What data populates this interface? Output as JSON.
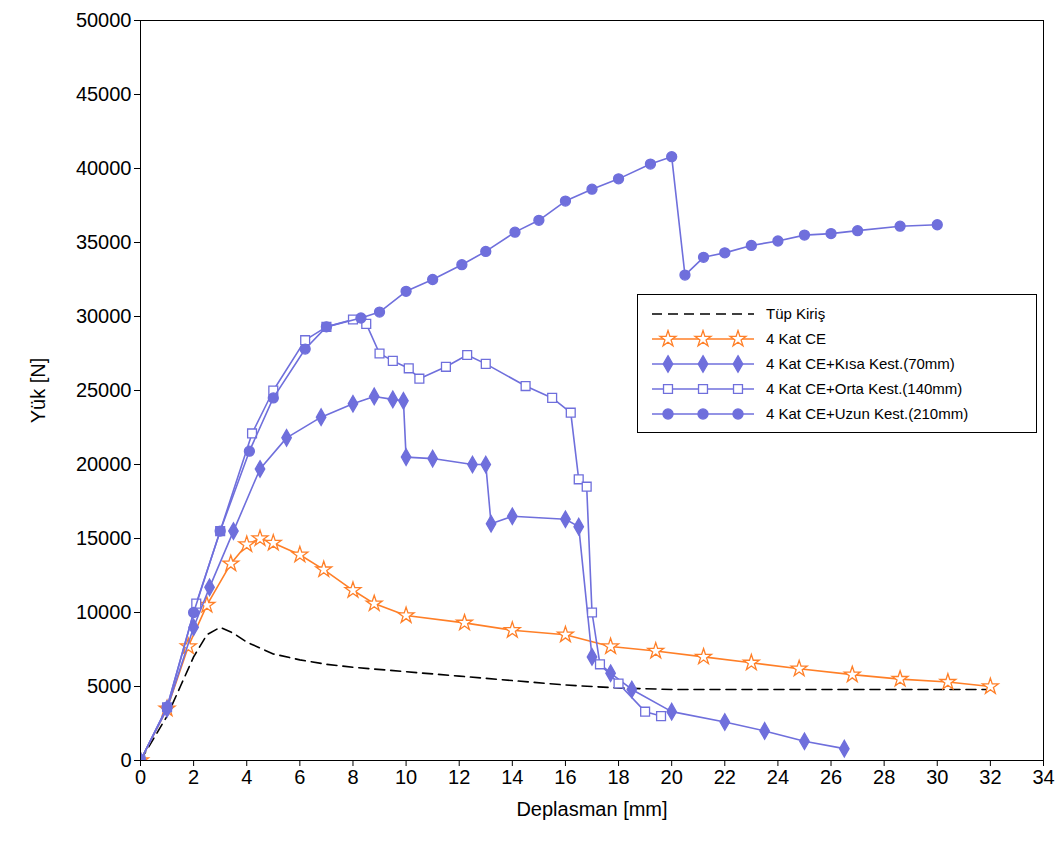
{
  "chart_data": {
    "type": "line",
    "x_label": "Deplasman [mm]",
    "y_label": "Yük [N]",
    "xlim": [
      0,
      34
    ],
    "ylim": [
      0,
      50000
    ],
    "xticks": [
      0,
      2,
      4,
      6,
      8,
      10,
      12,
      14,
      16,
      18,
      20,
      22,
      24,
      26,
      28,
      30,
      32,
      34
    ],
    "yticks": [
      0,
      5000,
      10000,
      15000,
      20000,
      25000,
      30000,
      35000,
      40000,
      45000,
      50000
    ],
    "grid": false,
    "legend": "right",
    "series": [
      {
        "name": "Tüp Kiriş",
        "color": "#000000",
        "line_style": "dashed",
        "marker": "none",
        "x": [
          0,
          0.5,
          1,
          1.5,
          2,
          2.5,
          3,
          3.5,
          4,
          5,
          6,
          7,
          8,
          10,
          12,
          14,
          16,
          18,
          20,
          24,
          28,
          32
        ],
        "values": [
          0,
          1500,
          3000,
          5000,
          7000,
          8500,
          9000,
          8600,
          8000,
          7200,
          6800,
          6500,
          6300,
          6000,
          5700,
          5400,
          5100,
          4900,
          4800,
          4800,
          4800,
          4800
        ]
      },
      {
        "name": "4 Kat CE",
        "color": "#ff7f27",
        "line_style": "solid",
        "marker": "star",
        "x": [
          0,
          1,
          1.8,
          2.5,
          3.4,
          4,
          4.5,
          5,
          6,
          6.9,
          8,
          8.8,
          10,
          12.2,
          14,
          16,
          17.7,
          19.4,
          21.2,
          23,
          24.8,
          26.8,
          28.6,
          30.4,
          32
        ],
        "values": [
          0,
          3500,
          7700,
          10500,
          13300,
          14600,
          15000,
          14700,
          13900,
          12900,
          11500,
          10600,
          9800,
          9300,
          8800,
          8500,
          7700,
          7400,
          7000,
          6600,
          6200,
          5800,
          5500,
          5300,
          5000
        ]
      },
      {
        "name": "4 Kat CE+Kısa Kest.(70mm)",
        "color": "#6f6fdc",
        "line_style": "solid",
        "marker": "diamond",
        "x": [
          0,
          1,
          2,
          2.6,
          3.5,
          4.5,
          5.5,
          6.8,
          8,
          8.8,
          9.5,
          9.9,
          10,
          11,
          12.5,
          13,
          13.2,
          14,
          16,
          16.5,
          17,
          17.7,
          18.5,
          20,
          22,
          23.5,
          25,
          26.5
        ],
        "values": [
          0,
          3500,
          9000,
          11700,
          15500,
          19700,
          21800,
          23200,
          24100,
          24600,
          24400,
          24300,
          20500,
          20400,
          20000,
          20000,
          16000,
          16500,
          16300,
          15800,
          7000,
          5900,
          4800,
          3300,
          2600,
          2000,
          1300,
          800
        ]
      },
      {
        "name": "4 Kat CE+Orta Kest.(140mm)",
        "color": "#6f6fdc",
        "line_style": "solid",
        "marker": "square",
        "x": [
          0,
          1,
          2.1,
          3,
          4.2,
          5,
          6.2,
          7,
          8,
          8.5,
          9,
          9.5,
          10.1,
          10.5,
          11.5,
          12.3,
          13,
          14.5,
          15.5,
          16.2,
          16.5,
          16.8,
          17,
          17.3,
          18,
          19,
          19.6
        ],
        "values": [
          0,
          3600,
          10600,
          15500,
          22100,
          25000,
          28400,
          29300,
          29800,
          29500,
          27500,
          27000,
          26500,
          25800,
          26600,
          27400,
          26800,
          25300,
          24500,
          23500,
          19000,
          18500,
          10000,
          6500,
          5200,
          3300,
          3000
        ]
      },
      {
        "name": "4 Kat CE+Uzun Kest.(210mm)",
        "color": "#6f6fdc",
        "line_style": "solid",
        "marker": "circle",
        "x": [
          0,
          1,
          2,
          3,
          4.1,
          5,
          6.2,
          7,
          8.3,
          9,
          10,
          11,
          12.1,
          13,
          14.1,
          15,
          16,
          17,
          18,
          19.2,
          20,
          20.5,
          21.2,
          22,
          23,
          24,
          25,
          26,
          27,
          28.6,
          30
        ],
        "values": [
          0,
          3600,
          10000,
          15500,
          20900,
          24500,
          27800,
          29300,
          29900,
          30300,
          31700,
          32500,
          33500,
          34400,
          35700,
          36500,
          37800,
          38600,
          39300,
          40300,
          40800,
          32800,
          34000,
          34300,
          34800,
          35100,
          35500,
          35600,
          35800,
          36100,
          36200
        ]
      }
    ]
  }
}
